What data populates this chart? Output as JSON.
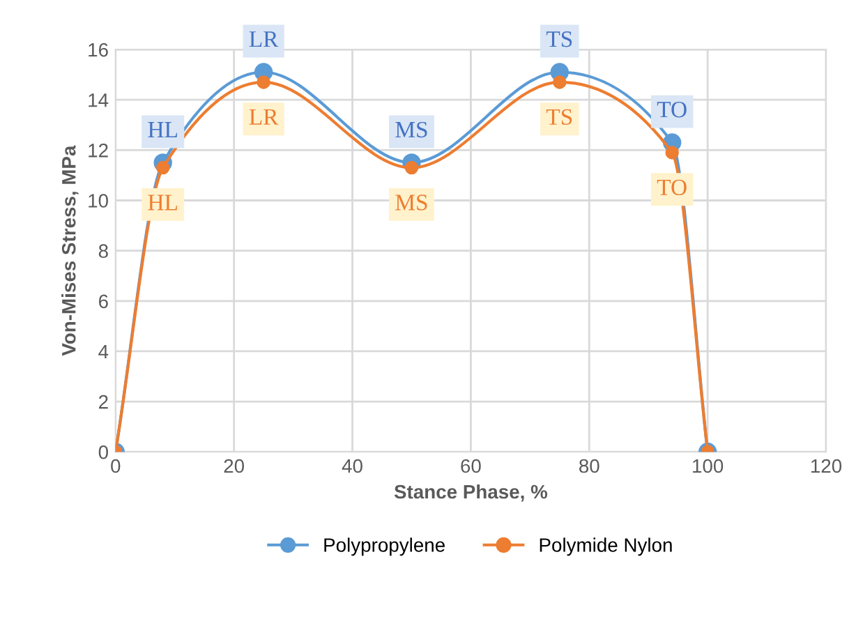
{
  "chart_data": {
    "type": "line",
    "xlabel": "Stance Phase, %",
    "ylabel": "Von-Mises Stress, MPa",
    "x": [
      0,
      8,
      25,
      50,
      75,
      94,
      100
    ],
    "series": [
      {
        "name": "Polypropylene",
        "color": "#5b9bd5",
        "values": [
          0,
          11.5,
          15.1,
          11.5,
          15.1,
          12.3,
          0
        ]
      },
      {
        "name": "Polymide Nylon",
        "color": "#ed7d31",
        "values": [
          0,
          11.3,
          14.7,
          11.3,
          14.7,
          11.9,
          0
        ]
      }
    ],
    "annotations": [
      {
        "text": "HL",
        "x": 8,
        "y": 11.5
      },
      {
        "text": "LR",
        "x": 25,
        "y": 15.1
      },
      {
        "text": "MS",
        "x": 50,
        "y": 11.5
      },
      {
        "text": "TS",
        "x": 75,
        "y": 15.1
      },
      {
        "text": "TO",
        "x": 94,
        "y": 12.3
      },
      {
        "text": "HL",
        "x": 8,
        "y": 11.3
      },
      {
        "text": "LR",
        "x": 25,
        "y": 14.7
      },
      {
        "text": "MS",
        "x": 50,
        "y": 11.3
      },
      {
        "text": "TS",
        "x": 75,
        "y": 14.7
      },
      {
        "text": "TO",
        "x": 94,
        "y": 11.9
      }
    ],
    "xlim": [
      0,
      120
    ],
    "xticks": [
      0,
      20,
      40,
      60,
      80,
      100,
      120
    ],
    "ylim": [
      0,
      16
    ],
    "yticks": [
      0,
      2,
      4,
      6,
      8,
      10,
      12,
      14,
      16
    ],
    "grid": true,
    "legend": "bottom",
    "marker": "circle",
    "line_style": "solid"
  }
}
